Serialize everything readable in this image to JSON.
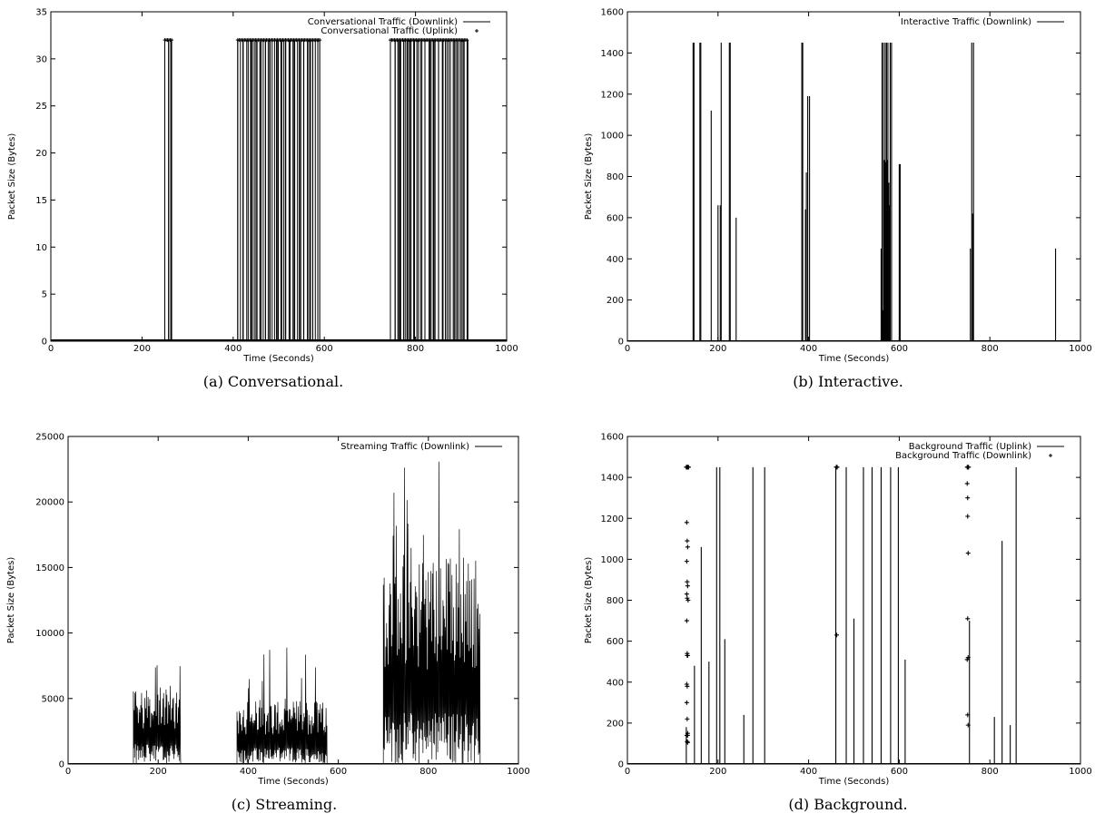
{
  "figure": {
    "panels": [
      {
        "id": "a",
        "caption": "(a)  Conversational.",
        "chart_data": {
          "type": "line",
          "title": "",
          "xlabel": "Time (Seconds)",
          "ylabel": "Packet Size (Bytes)",
          "xlim": [
            0,
            1000
          ],
          "ylim": [
            0,
            35
          ],
          "xticks": [
            0,
            200,
            400,
            600,
            800,
            1000
          ],
          "yticks": [
            0,
            5,
            10,
            15,
            20,
            25,
            30,
            35
          ],
          "legend_position": "top-right",
          "series": [
            {
              "name": "Conversational Traffic (Downlink)",
              "style": "impulses",
              "on_value": 32,
              "base_value": 0,
              "active_intervals": [
                [
                  250,
                  265
                ],
                [
                  410,
                  590
                ],
                [
                  745,
                  915
                ]
              ]
            },
            {
              "name": "Conversational Traffic (Uplink)",
              "style": "points",
              "on_value": 32,
              "base_value": 0,
              "active_intervals": [
                [
                  250,
                  265
                ],
                [
                  410,
                  590
                ],
                [
                  745,
                  915
                ]
              ]
            }
          ]
        }
      },
      {
        "id": "b",
        "caption": "(b)  Interactive.",
        "chart_data": {
          "type": "line",
          "title": "",
          "xlabel": "Time (Seconds)",
          "ylabel": "Packet Size (Bytes)",
          "xlim": [
            0,
            1000
          ],
          "ylim": [
            0,
            1600
          ],
          "xticks": [
            0,
            200,
            400,
            600,
            800,
            1000
          ],
          "yticks": [
            0,
            200,
            400,
            600,
            800,
            1000,
            1200,
            1400,
            1600
          ],
          "legend_position": "top-right",
          "series": [
            {
              "name": "Interactive Traffic (Downlink)",
              "style": "impulses",
              "x": [
                145,
                147,
                160,
                162,
                185,
                200,
                205,
                207,
                225,
                227,
                240,
                385,
                387,
                393,
                395,
                398,
                402,
                560,
                562,
                563,
                565,
                567,
                569,
                570,
                572,
                574,
                575,
                577,
                578,
                580,
                583,
                600,
                602,
                757,
                760,
                762,
                764,
                945
              ],
              "y": [
                1450,
                1450,
                1450,
                1450,
                1120,
                660,
                660,
                1450,
                1450,
                1450,
                600,
                1450,
                1450,
                640,
                820,
                1190,
                1190,
                450,
                1450,
                150,
                1450,
                880,
                1450,
                870,
                1450,
                880,
                1450,
                770,
                660,
                1450,
                1450,
                860,
                860,
                450,
                1450,
                620,
                1450,
                450
              ]
            }
          ]
        }
      },
      {
        "id": "c",
        "caption": "(c)  Streaming.",
        "chart_data": {
          "type": "line",
          "title": "",
          "xlabel": "Time (Seconds)",
          "ylabel": "Packet Size (Bytes)",
          "xlim": [
            0,
            1000
          ],
          "ylim": [
            0,
            25000
          ],
          "xticks": [
            0,
            200,
            400,
            600,
            800,
            1000
          ],
          "yticks": [
            0,
            5000,
            10000,
            15000,
            20000,
            25000
          ],
          "legend_position": "top-right",
          "series": [
            {
              "name": "Streaming Traffic (Downlink)",
              "style": "bursts",
              "bursts": [
                {
                  "start": 145,
                  "end": 250,
                  "min": 0,
                  "typical_max": 6000,
                  "peak": 9300
                },
                {
                  "start": 375,
                  "end": 575,
                  "min": 0,
                  "typical_max": 5000,
                  "peak": 9200
                },
                {
                  "start": 700,
                  "end": 915,
                  "min": 0,
                  "typical_max": 16000,
                  "peak": 23300
                }
              ]
            }
          ]
        }
      },
      {
        "id": "d",
        "caption": "(d)  Background.",
        "chart_data": {
          "type": "line",
          "title": "",
          "xlabel": "Time (Seconds)",
          "ylabel": "Packet Size (Bytes)",
          "xlim": [
            0,
            1000
          ],
          "ylim": [
            0,
            1600
          ],
          "xticks": [
            0,
            200,
            400,
            600,
            800,
            1000
          ],
          "yticks": [
            0,
            200,
            400,
            600,
            800,
            1000,
            1200,
            1400,
            1600
          ],
          "legend_position": "top-right",
          "series": [
            {
              "name": "Background Traffic (Uplink)",
              "style": "impulses",
              "x": [
                130,
                148,
                163,
                180,
                197,
                204,
                215,
                257,
                277,
                303,
                460,
                483,
                500,
                521,
                540,
                560,
                581,
                598,
                613,
                755,
                810,
                827,
                845,
                858
              ],
              "y": [
                180,
                480,
                1060,
                500,
                1450,
                1450,
                610,
                240,
                1450,
                1450,
                1450,
                1450,
                710,
                1450,
                1450,
                1450,
                1450,
                1450,
                510,
                700,
                230,
                1090,
                190,
                1450
              ]
            },
            {
              "name": "Background Traffic (Downlink)",
              "style": "points",
              "x": [
                130,
                131,
                132,
                133,
                134,
                135,
                131,
                132,
                133,
                131,
                132,
                133,
                131,
                132,
                134,
                131,
                132,
                132,
                133,
                131,
                132,
                131,
                132,
                133,
                131,
                132,
                133,
                133,
                461,
                462,
                463,
                462,
                750,
                751,
                752,
                753,
                750,
                751,
                751,
                752,
                751,
                752,
                750,
                751,
                752
              ],
              "y": [
                1450,
                1450,
                1450,
                1450,
                1450,
                1450,
                1180,
                1090,
                1060,
                990,
                890,
                870,
                830,
                810,
                800,
                700,
                540,
                530,
                530,
                390,
                380,
                300,
                220,
                140,
                140,
                110,
                105,
                150,
                1450,
                1450,
                1450,
                630,
                1450,
                1450,
                1450,
                1450,
                1370,
                1300,
                1210,
                1030,
                710,
                520,
                510,
                240,
                190
              ]
            }
          ]
        }
      }
    ]
  }
}
